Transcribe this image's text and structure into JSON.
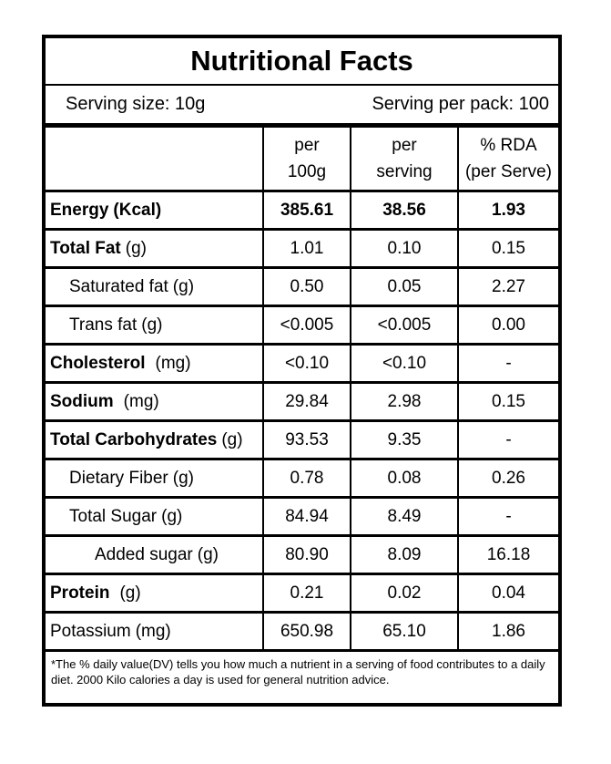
{
  "label": {
    "title": "Nutritional Facts",
    "serving": {
      "size": "Serving size: 10g",
      "per_pack": "Serving per pack: 100"
    },
    "header": {
      "per_100g": "per\n100g",
      "per_serving": "per\nserving",
      "rda": "% RDA\n(per Serve)"
    },
    "rows": [
      {
        "name": "Energy",
        "unit": "(Kcal)",
        "per_100g": "385.61",
        "per_serving": "38.56",
        "rda": "1.93"
      },
      {
        "name": "Total Fat",
        "unit": "(g)",
        "per_100g": "1.01",
        "per_serving": "0.10",
        "rda": "0.15"
      },
      {
        "name": "Saturated fat",
        "unit": "(g)",
        "per_100g": "0.50",
        "per_serving": "0.05",
        "rda": "2.27"
      },
      {
        "name": "Trans fat",
        "unit": "(g)",
        "per_100g": "<0.005",
        "per_serving": "<0.005",
        "rda": "0.00"
      },
      {
        "name": "Cholesterol",
        "unit": "(mg)",
        "per_100g": "<0.10",
        "per_serving": "<0.10",
        "rda": "-"
      },
      {
        "name": "Sodium",
        "unit": "(mg)",
        "per_100g": "29.84",
        "per_serving": "2.98",
        "rda": "0.15"
      },
      {
        "name": "Total Carbohydrates",
        "unit": "(g)",
        "per_100g": "93.53",
        "per_serving": "9.35",
        "rda": "-"
      },
      {
        "name": "Dietary Fiber",
        "unit": "(g)",
        "per_100g": "0.78",
        "per_serving": "0.08",
        "rda": "0.26"
      },
      {
        "name": "Total Sugar",
        "unit": "(g)",
        "per_100g": "84.94",
        "per_serving": "8.49",
        "rda": "-"
      },
      {
        "name": "Added sugar",
        "unit": "(g)",
        "per_100g": "80.90",
        "per_serving": "8.09",
        "rda": "16.18"
      },
      {
        "name": "Protein",
        "unit": "(g)",
        "per_100g": "0.21",
        "per_serving": "0.02",
        "rda": "0.04"
      },
      {
        "name": "Potassium",
        "unit": "(mg)",
        "per_100g": "650.98",
        "per_serving": "65.10",
        "rda": "1.86"
      }
    ],
    "footnote": "*The % daily value(DV) tells you how much a nutrient in a serving of food contributes to a daily diet. 2000 Kilo calories a day is used for general nutrition advice.",
    "colors": {
      "border": "#000000",
      "text": "#000000",
      "background": "#ffffff"
    }
  }
}
